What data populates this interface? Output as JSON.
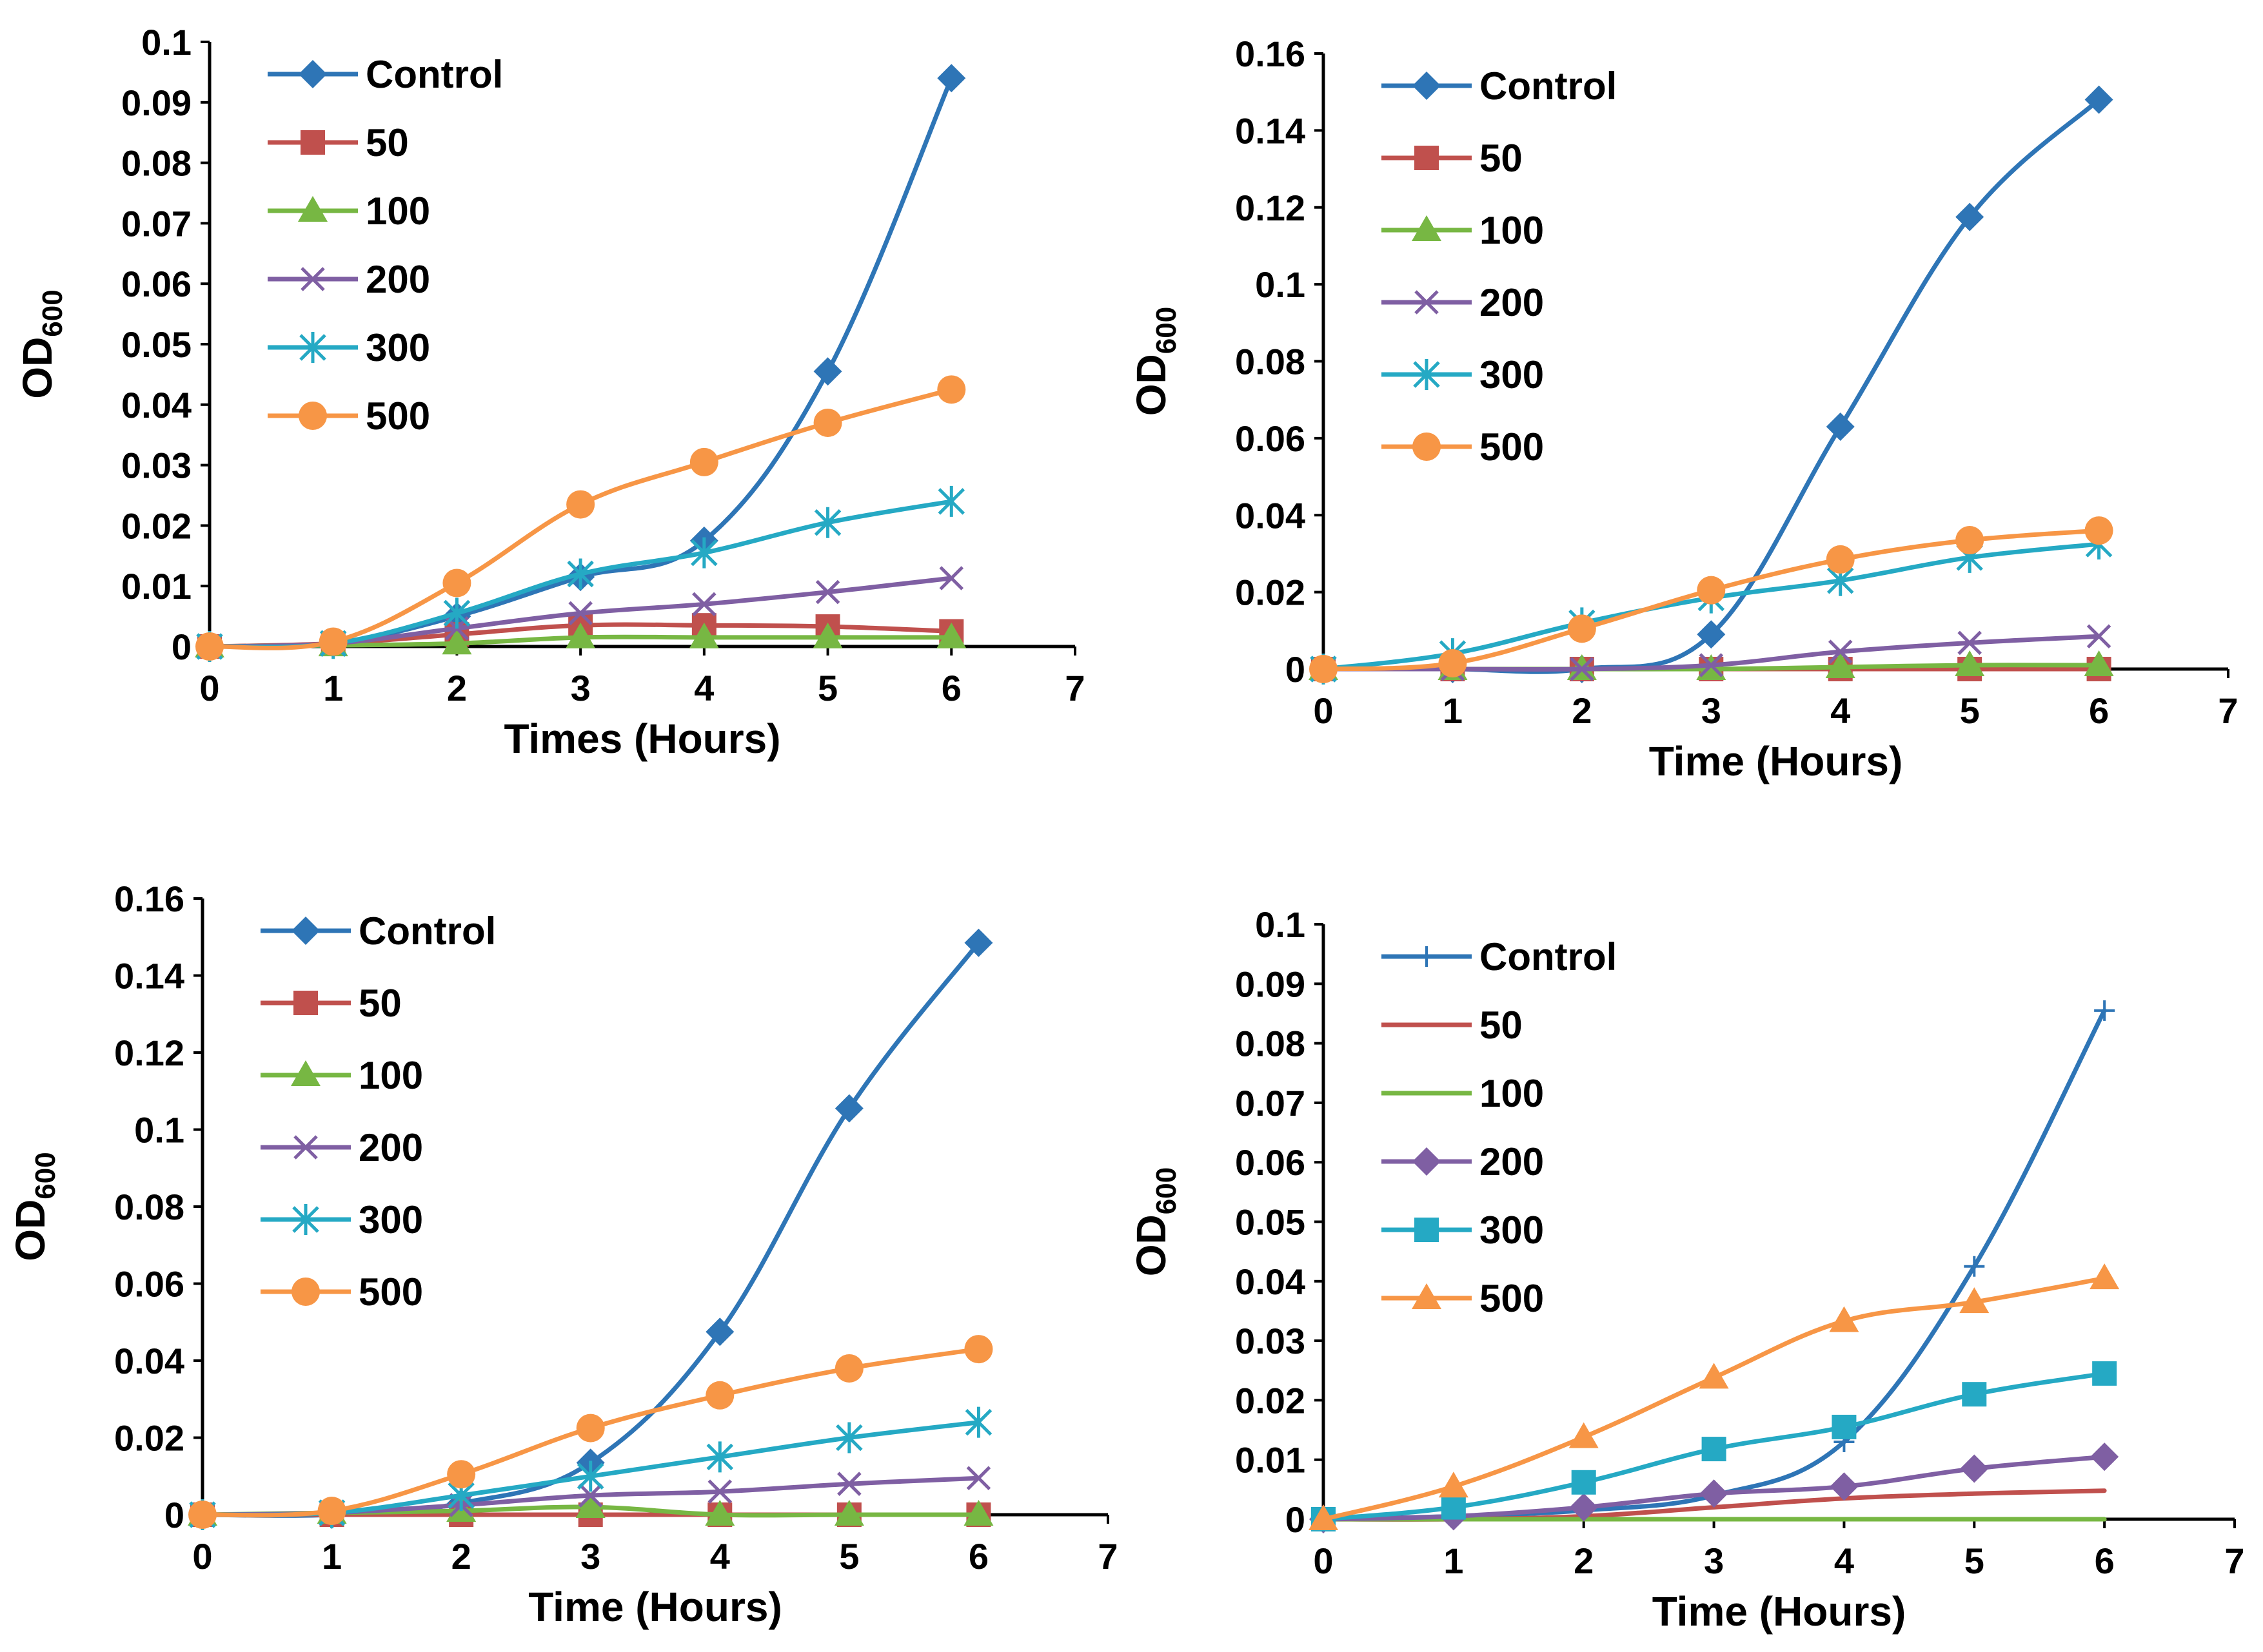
{
  "figure": {
    "label": "Four growth curve panels"
  },
  "colors": {
    "Control": "#2e75b6",
    "50": "#c0504d",
    "100": "#77b743",
    "200": "#7f5fa3",
    "300": "#25a9c4",
    "500": "#f79646",
    "axis": "#000000"
  },
  "chart_data": [
    {
      "type": "line",
      "panel": "top-left",
      "title": "",
      "xlabel": "Times (Hours)",
      "ylabel": "OD600",
      "ylabel_main": "OD",
      "ylabel_sub": "600",
      "xlim": [
        0,
        7
      ],
      "ylim": [
        0,
        0.1
      ],
      "xticks": [
        "0",
        "1",
        "2",
        "3",
        "4",
        "5",
        "6",
        "7"
      ],
      "yticks": [
        "0",
        "0.01",
        "0.02",
        "0.03",
        "0.04",
        "0.05",
        "0.06",
        "0.07",
        "0.08",
        "0.09",
        "0.1"
      ],
      "ytick_values": [
        0,
        0.01,
        0.02,
        0.03,
        0.04,
        0.05,
        0.06,
        0.07,
        0.08,
        0.09,
        0.1
      ],
      "grid": false,
      "legend_position": "top-left",
      "x": [
        0,
        1,
        2,
        3,
        4,
        5,
        6
      ],
      "series": [
        {
          "name": "Control",
          "marker": "diamond",
          "values": [
            0,
            0.0005,
            0.005,
            0.0115,
            0.0175,
            0.0455,
            0.094
          ]
        },
        {
          "name": "50",
          "marker": "square",
          "values": [
            0,
            0.0005,
            0.002,
            0.0035,
            0.0035,
            0.0033,
            0.0025
          ]
        },
        {
          "name": "100",
          "marker": "triangle",
          "values": [
            0,
            0.0002,
            0.0005,
            0.0015,
            0.0015,
            0.0015,
            0.0015
          ]
        },
        {
          "name": "200",
          "marker": "x",
          "values": [
            0,
            0.0005,
            0.003,
            0.0055,
            0.007,
            0.009,
            0.0113
          ]
        },
        {
          "name": "300",
          "marker": "star",
          "values": [
            0,
            0.0005,
            0.0055,
            0.012,
            0.0155,
            0.0205,
            0.024
          ]
        },
        {
          "name": "500",
          "marker": "circle",
          "values": [
            0,
            0.0008,
            0.0105,
            0.0235,
            0.0305,
            0.037,
            0.0425
          ]
        }
      ]
    },
    {
      "type": "line",
      "panel": "top-right",
      "title": "",
      "xlabel": "Time (Hours)",
      "ylabel": "OD600",
      "ylabel_main": "OD",
      "ylabel_sub": "600",
      "xlim": [
        0,
        7
      ],
      "ylim": [
        0,
        0.16
      ],
      "xticks": [
        "0",
        "1",
        "2",
        "3",
        "4",
        "5",
        "6",
        "7"
      ],
      "yticks": [
        "0",
        "0.02",
        "0.04",
        "0.06",
        "0.08",
        "0.1",
        "0.12",
        "0.14",
        "0.16"
      ],
      "ytick_values": [
        0,
        0.02,
        0.04,
        0.06,
        0.08,
        0.1,
        0.12,
        0.14,
        0.16
      ],
      "grid": false,
      "legend_position": "top-left",
      "x": [
        0,
        1,
        2,
        3,
        4,
        5,
        6
      ],
      "series": [
        {
          "name": "Control",
          "marker": "diamond",
          "values": [
            0,
            0,
            0,
            0.009,
            0.063,
            0.1175,
            0.148
          ]
        },
        {
          "name": "50",
          "marker": "square",
          "values": [
            0,
            0,
            0,
            0,
            0,
            0,
            0
          ]
        },
        {
          "name": "100",
          "marker": "triangle",
          "values": [
            0,
            0,
            0,
            0,
            0.0005,
            0.001,
            0.001
          ]
        },
        {
          "name": "200",
          "marker": "x",
          "values": [
            0,
            0,
            0,
            0.001,
            0.0045,
            0.0068,
            0.0085
          ]
        },
        {
          "name": "300",
          "marker": "star",
          "values": [
            0,
            0.004,
            0.012,
            0.0185,
            0.023,
            0.029,
            0.0325
          ]
        },
        {
          "name": "500",
          "marker": "circle",
          "values": [
            0,
            0.0015,
            0.0105,
            0.0205,
            0.0285,
            0.0335,
            0.036
          ]
        }
      ]
    },
    {
      "type": "line",
      "panel": "bottom-left",
      "title": "",
      "xlabel": "Time (Hours)",
      "ylabel": "OD600",
      "ylabel_main": "OD",
      "ylabel_sub": "600",
      "xlim": [
        0,
        7
      ],
      "ylim": [
        0,
        0.16
      ],
      "xticks": [
        "0",
        "1",
        "2",
        "3",
        "4",
        "5",
        "6",
        "7"
      ],
      "yticks": [
        "0",
        "0.02",
        "0.04",
        "0.06",
        "0.08",
        "0.1",
        "0.12",
        "0.14",
        "0.16"
      ],
      "ytick_values": [
        0,
        0.02,
        0.04,
        0.06,
        0.08,
        0.1,
        0.12,
        0.14,
        0.16
      ],
      "grid": false,
      "legend_position": "top-left",
      "x": [
        0,
        1,
        2,
        3,
        4,
        5,
        6
      ],
      "series": [
        {
          "name": "Control",
          "marker": "diamond",
          "values": [
            0,
            0,
            0.003,
            0.0135,
            0.0475,
            0.1055,
            0.1485
          ]
        },
        {
          "name": "50",
          "marker": "square",
          "values": [
            0,
            0,
            0,
            0,
            0,
            0,
            0
          ]
        },
        {
          "name": "100",
          "marker": "triangle",
          "values": [
            0,
            0.0005,
            0.001,
            0.002,
            0,
            0,
            0
          ]
        },
        {
          "name": "200",
          "marker": "x",
          "values": [
            0,
            0.0005,
            0.0025,
            0.005,
            0.006,
            0.008,
            0.0095
          ]
        },
        {
          "name": "300",
          "marker": "star",
          "values": [
            0,
            0.0005,
            0.005,
            0.01,
            0.015,
            0.02,
            0.024
          ]
        },
        {
          "name": "500",
          "marker": "circle",
          "values": [
            0,
            0.001,
            0.0105,
            0.0225,
            0.031,
            0.038,
            0.043
          ]
        }
      ]
    },
    {
      "type": "line",
      "panel": "bottom-right",
      "title": "",
      "xlabel": "Time (Hours)",
      "ylabel": "OD600",
      "ylabel_main": "OD",
      "ylabel_sub": "600",
      "xlim": [
        0,
        7
      ],
      "ylim": [
        0,
        0.1
      ],
      "xticks": [
        "0",
        "1",
        "2",
        "3",
        "4",
        "5",
        "6",
        "7"
      ],
      "yticks": [
        "0",
        "0.01",
        "0.02",
        "0.03",
        "0.04",
        "0.05",
        "0.06",
        "0.07",
        "0.08",
        "0.09",
        "0.1"
      ],
      "ytick_values": [
        0,
        0.01,
        0.02,
        0.03,
        0.04,
        0.05,
        0.06,
        0.07,
        0.08,
        0.09,
        0.1
      ],
      "grid": false,
      "legend_position": "top-left",
      "x": [
        0,
        1,
        2,
        3,
        4,
        5,
        6
      ],
      "series": [
        {
          "name": "Control",
          "marker": "plus",
          "values": [
            0,
            0.0005,
            0.0015,
            0.004,
            0.013,
            0.0425,
            0.0855
          ]
        },
        {
          "name": "50",
          "marker": "none",
          "values": [
            0,
            0,
            0.0005,
            0.002,
            0.0035,
            0.0043,
            0.0048
          ]
        },
        {
          "name": "100",
          "marker": "none",
          "values": [
            0,
            0,
            0,
            0,
            0,
            0,
            0
          ]
        },
        {
          "name": "200",
          "marker": "diamond",
          "values": [
            0,
            0.0005,
            0.002,
            0.0043,
            0.0055,
            0.0085,
            0.0105
          ]
        },
        {
          "name": "300",
          "marker": "square",
          "values": [
            0,
            0.002,
            0.0062,
            0.0118,
            0.0155,
            0.021,
            0.0245
          ]
        },
        {
          "name": "500",
          "marker": "triangle",
          "values": [
            0,
            0.0055,
            0.0138,
            0.0238,
            0.0333,
            0.0365,
            0.0405
          ]
        }
      ]
    }
  ]
}
